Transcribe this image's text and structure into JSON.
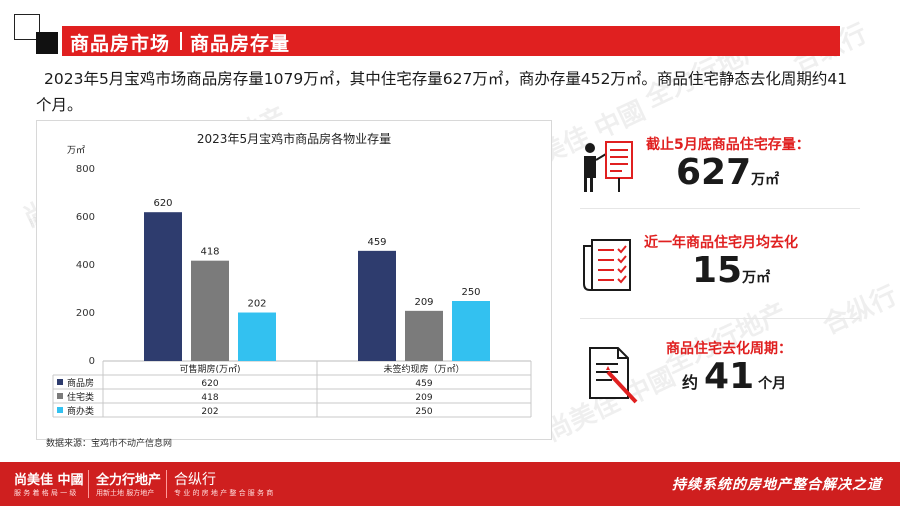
{
  "header": {
    "title_main": "商品房市场",
    "title_sub": "商品房存量"
  },
  "intro": "2023年5月宝鸡市场商品房存量1079万㎡，其中住宅存量627万㎡，商办存量452万㎡。商品住宅静态去化周期约41个月。",
  "chart_data": {
    "type": "bar",
    "title": "2023年5月宝鸡市商品房各物业存量",
    "ylabel": "万㎡",
    "ylim": [
      0,
      800
    ],
    "yticks": [
      0,
      200,
      400,
      600,
      800
    ],
    "categories": [
      "可售期房(万㎡)",
      "未签约现房（万㎡）"
    ],
    "series": [
      {
        "name": "商品房",
        "values": [
          620,
          459
        ],
        "color": "#2e3c6e"
      },
      {
        "name": "住宅类",
        "values": [
          418,
          209
        ],
        "color": "#7b7b7b"
      },
      {
        "name": "商办类",
        "values": [
          202,
          250
        ],
        "color": "#33c1f0"
      }
    ],
    "data_table": true,
    "source": "数据来源：宝鸡市不动产信息网"
  },
  "stats": [
    {
      "title": "截止5月底商品住宅存量：",
      "prefix": "",
      "value": "627",
      "unit": "万㎡",
      "icon": "presentation-board-icon"
    },
    {
      "title": "近一年商品住宅月均去化",
      "prefix": "",
      "value": "15",
      "unit": "万㎡",
      "icon": "checklist-icon"
    },
    {
      "title": "商品住宅去化周期：",
      "prefix": "约",
      "value": "41",
      "unit": "个月",
      "icon": "document-pen-icon"
    }
  ],
  "watermarks": {
    "brand1": "尚美佳 中國",
    "brand1_sub": "服 务 着 格 局 一 级",
    "brand2": "全力行地产",
    "brand2_sub": "用 新 土 地 服 方 地 产",
    "brand3": "合纵行"
  },
  "footer": {
    "logo1": "尚美佳 中國",
    "logo1_sub": "服 务 着 格 局 一 级",
    "logo2": "全力行地产",
    "logo2_sub": "用新土地 服方地产",
    "logo3": "合纵行",
    "logo3_sub": "专 业 的 房 地 产 整 合 服 务 商",
    "slogan": "持续系统的房地产整合解决之道"
  },
  "colors": {
    "accent": "#e02020",
    "footer": "#cf1f1f"
  }
}
